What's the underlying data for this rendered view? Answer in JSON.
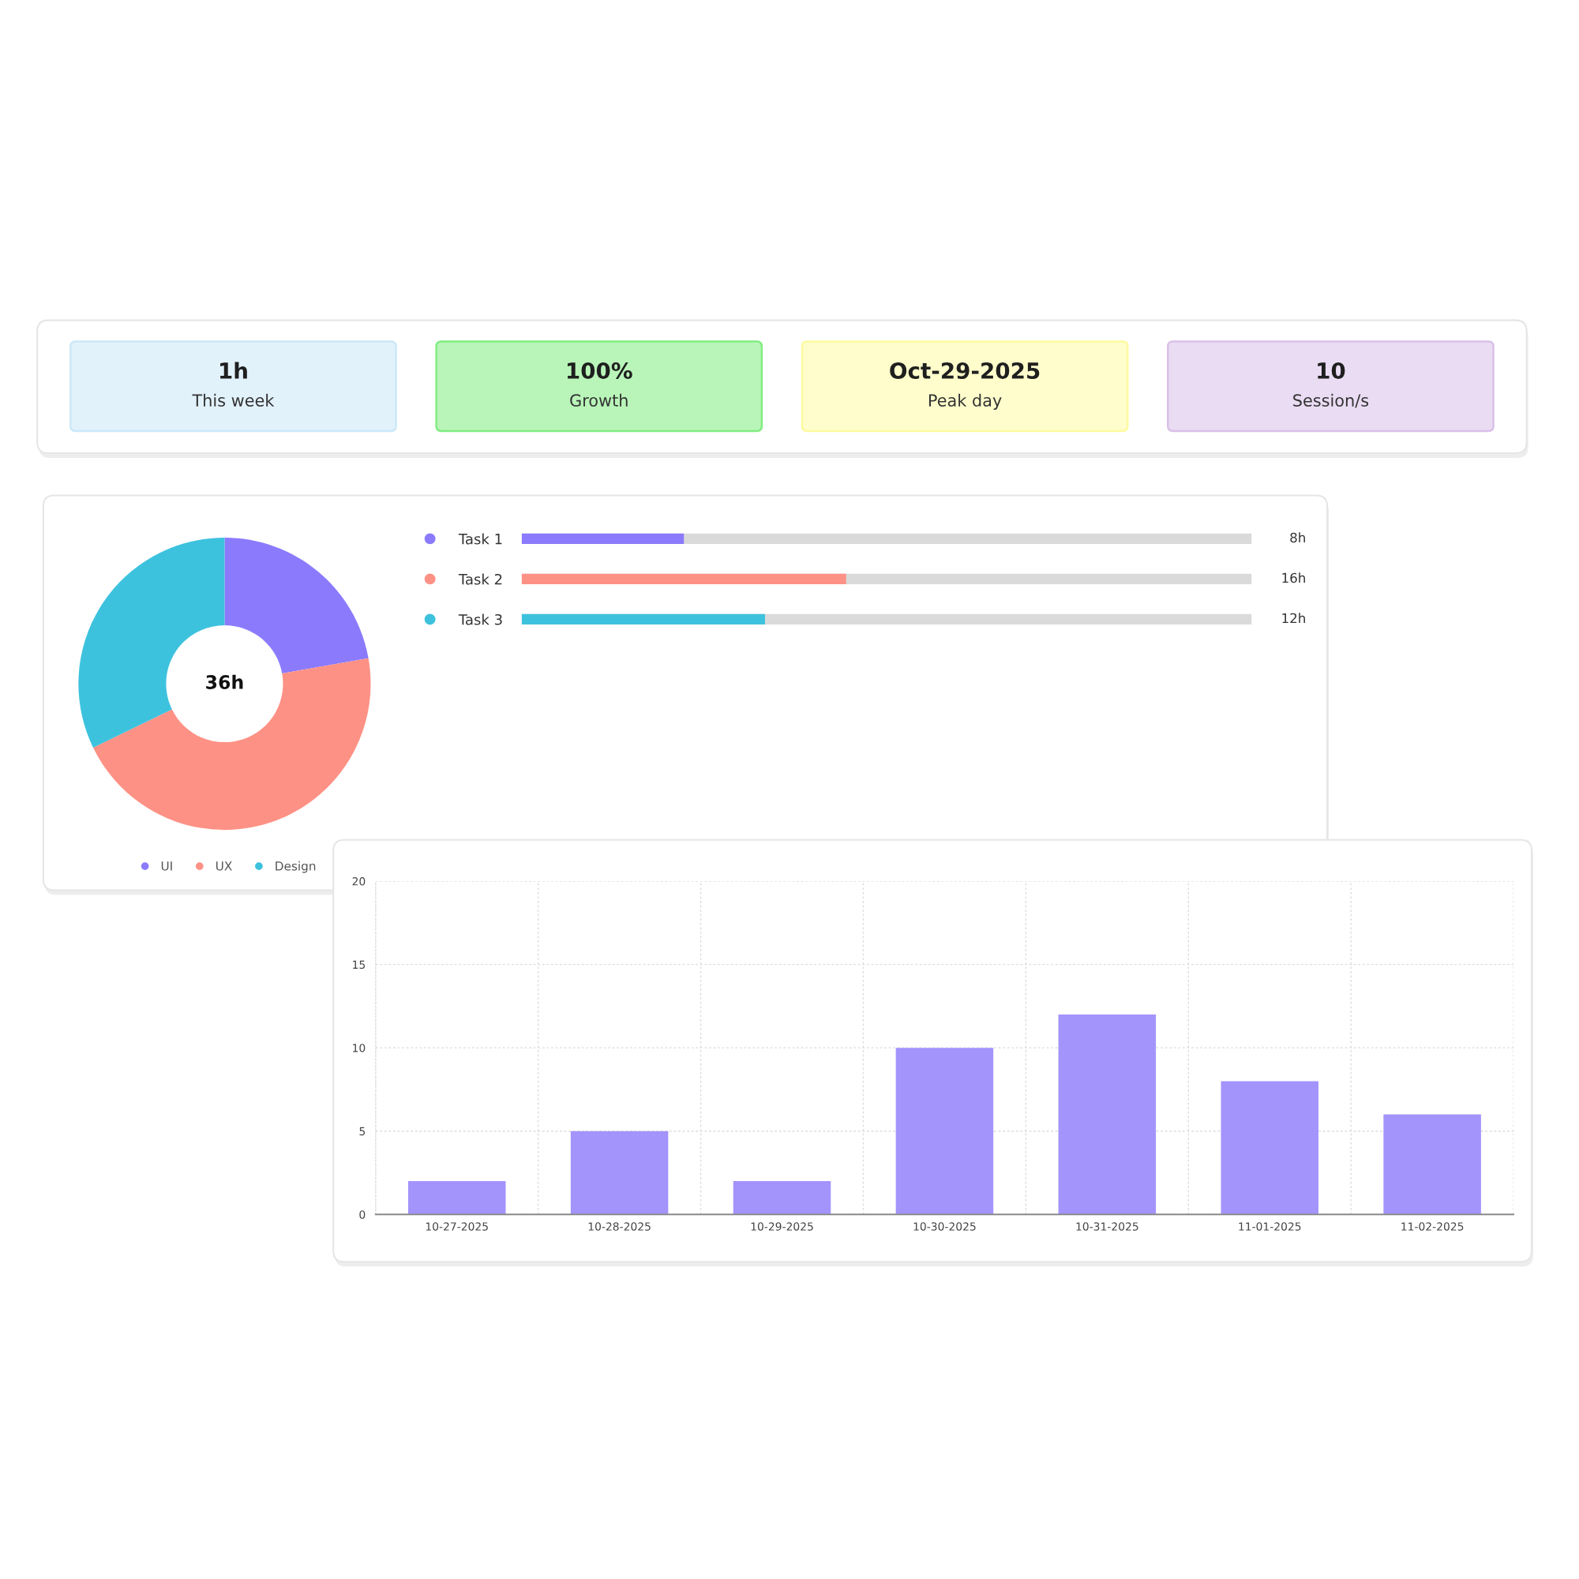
{
  "chart_data": [
    {
      "type": "other",
      "annotations": [
        "1h",
        "This week",
        "100%",
        "Growth",
        "Oct-29-2025",
        "Peak day",
        "10",
        "Session/s"
      ],
      "colors": [
        "#e2f2fb",
        "#b9f5b9",
        "#fefdcb",
        "#eadcf3"
      ]
    },
    {
      "type": "donut",
      "categories": [
        "UI",
        "UX",
        "Design"
      ],
      "values": [
        22.2,
        45.6,
        32.2
      ],
      "colors": [
        "#8b7bfc",
        "#fe9185",
        "#3dc2de"
      ],
      "annotations": [
        "36h"
      ],
      "legend": "bottom"
    },
    {
      "type": "bar",
      "orientation": "horizontal",
      "categories": [
        "Task 1",
        "Task 2",
        "Task 3"
      ],
      "values": [
        8,
        16,
        12
      ],
      "colors": [
        "#8b7bfc",
        "#fe9185",
        "#3dc2de"
      ],
      "value_labels": [
        "8h",
        "16h",
        "12h"
      ],
      "xlim": [
        0,
        36
      ],
      "tick_labels": "y"
    },
    {
      "type": "bar",
      "categories": [
        "10-27-2025",
        "10-28-2025",
        "10-29-2025",
        "10-30-2025",
        "10-31-2025",
        "11-01-2025",
        "11-02-2025"
      ],
      "values": [
        2,
        5,
        2,
        10,
        12,
        8,
        6
      ],
      "color": "#a394fc",
      "ylim": [
        0,
        20
      ],
      "yticks": [
        0,
        5,
        10,
        15,
        20
      ],
      "grid": true
    }
  ]
}
